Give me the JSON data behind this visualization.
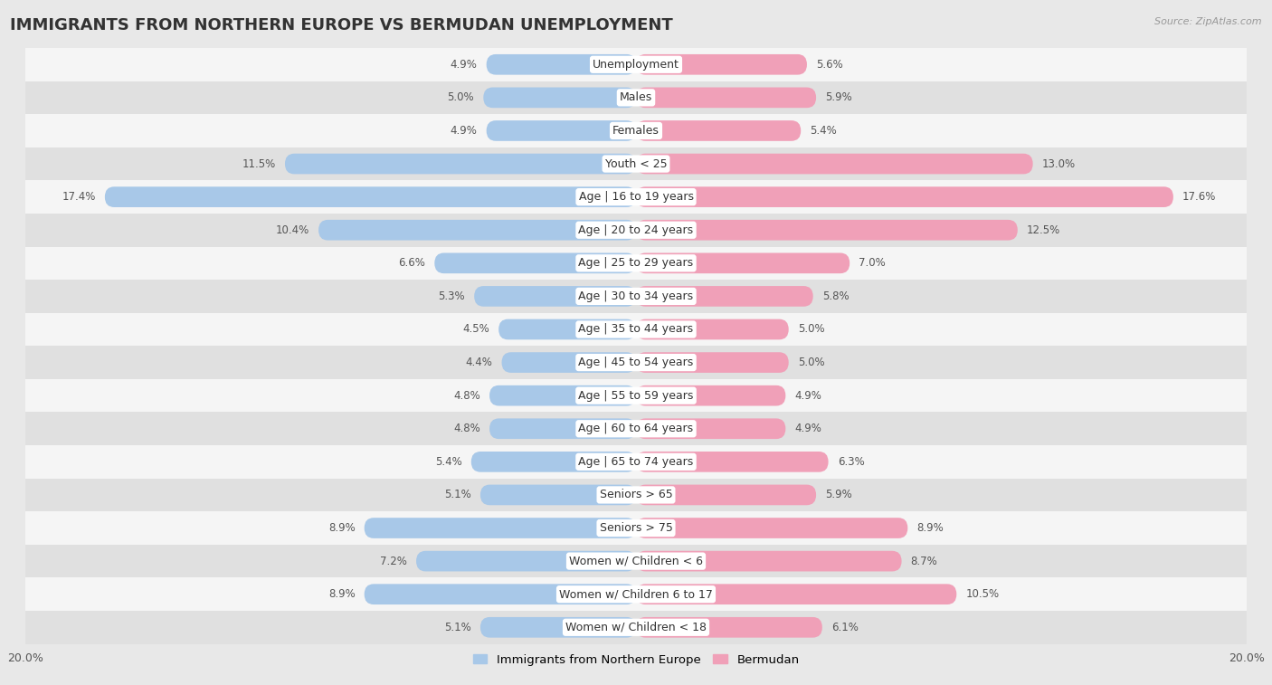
{
  "title": "IMMIGRANTS FROM NORTHERN EUROPE VS BERMUDAN UNEMPLOYMENT",
  "source": "Source: ZipAtlas.com",
  "categories": [
    "Unemployment",
    "Males",
    "Females",
    "Youth < 25",
    "Age | 16 to 19 years",
    "Age | 20 to 24 years",
    "Age | 25 to 29 years",
    "Age | 30 to 34 years",
    "Age | 35 to 44 years",
    "Age | 45 to 54 years",
    "Age | 55 to 59 years",
    "Age | 60 to 64 years",
    "Age | 65 to 74 years",
    "Seniors > 65",
    "Seniors > 75",
    "Women w/ Children < 6",
    "Women w/ Children 6 to 17",
    "Women w/ Children < 18"
  ],
  "left_values": [
    4.9,
    5.0,
    4.9,
    11.5,
    17.4,
    10.4,
    6.6,
    5.3,
    4.5,
    4.4,
    4.8,
    4.8,
    5.4,
    5.1,
    8.9,
    7.2,
    8.9,
    5.1
  ],
  "right_values": [
    5.6,
    5.9,
    5.4,
    13.0,
    17.6,
    12.5,
    7.0,
    5.8,
    5.0,
    5.0,
    4.9,
    4.9,
    6.3,
    5.9,
    8.9,
    8.7,
    10.5,
    6.1
  ],
  "left_color": "#a8c8e8",
  "right_color": "#f0a0b8",
  "axis_max": 20.0,
  "bg_color": "#e8e8e8",
  "row_bg_even": "#f5f5f5",
  "row_bg_odd": "#e0e0e0",
  "legend_left": "Immigrants from Northern Europe",
  "legend_right": "Bermudan",
  "title_fontsize": 13,
  "label_fontsize": 9.0,
  "value_fontsize": 8.5
}
